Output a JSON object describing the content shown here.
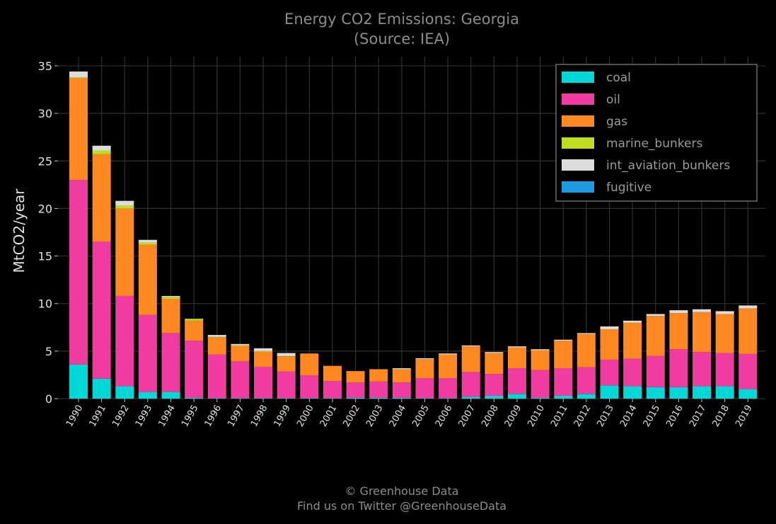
{
  "chart_data": {
    "type": "bar",
    "stacked": true,
    "title": "Energy CO2 Emissions: Georgia",
    "subtitle": "(Source: IEA)",
    "xlabel": "",
    "ylabel": "MtCO2/year",
    "ylim": [
      0,
      36
    ],
    "yticks": [
      0,
      5,
      10,
      15,
      20,
      25,
      30,
      35
    ],
    "grid": true,
    "legend_position": "top-right",
    "categories": [
      "1990",
      "1991",
      "1992",
      "1993",
      "1994",
      "1995",
      "1996",
      "1997",
      "1998",
      "1999",
      "2000",
      "2001",
      "2002",
      "2003",
      "2004",
      "2005",
      "2006",
      "2007",
      "2008",
      "2009",
      "2010",
      "2011",
      "2012",
      "2013",
      "2014",
      "2015",
      "2016",
      "2017",
      "2018",
      "2019"
    ],
    "series": [
      {
        "name": "coal",
        "color": "#00d7d7",
        "values": [
          3.6,
          2.1,
          1.3,
          0.7,
          0.7,
          0.1,
          0.05,
          0.05,
          0.05,
          0.05,
          0.05,
          0.05,
          0.1,
          0.1,
          0.1,
          0.05,
          0.05,
          0.2,
          0.3,
          0.5,
          0.1,
          0.3,
          0.5,
          1.4,
          1.3,
          1.2,
          1.2,
          1.3,
          1.3,
          1.0
        ]
      },
      {
        "name": "oil",
        "color": "#f03ca0",
        "values": [
          19.4,
          14.4,
          9.5,
          8.1,
          6.2,
          6.0,
          4.6,
          3.9,
          3.3,
          2.8,
          2.4,
          1.8,
          1.6,
          1.7,
          1.6,
          2.1,
          2.1,
          2.6,
          2.3,
          2.7,
          2.9,
          2.9,
          2.8,
          2.7,
          2.9,
          3.3,
          4.0,
          3.6,
          3.5,
          3.7
        ]
      },
      {
        "name": "gas",
        "color": "#ff8820",
        "values": [
          10.7,
          9.2,
          9.2,
          7.4,
          3.6,
          2.1,
          1.8,
          1.6,
          1.6,
          1.6,
          2.3,
          1.6,
          1.2,
          1.3,
          1.4,
          2.0,
          2.5,
          2.7,
          2.2,
          2.2,
          2.1,
          2.9,
          3.5,
          3.2,
          3.8,
          4.2,
          3.8,
          4.2,
          4.1,
          4.8
        ]
      },
      {
        "name": "marine_bunkers",
        "color": "#c0dd20",
        "values": [
          0.1,
          0.4,
          0.3,
          0.2,
          0.2,
          0.2,
          0.05,
          0.05,
          0.05,
          0.05,
          0.0,
          0.0,
          0.0,
          0.0,
          0.0,
          0.0,
          0.0,
          0.0,
          0.0,
          0.0,
          0.0,
          0.0,
          0.0,
          0.0,
          0.0,
          0.0,
          0.0,
          0.0,
          0.0,
          0.0
        ]
      },
      {
        "name": "int_aviation_bunkers",
        "color": "#dcdcdc",
        "values": [
          0.6,
          0.5,
          0.5,
          0.3,
          0.1,
          0.0,
          0.2,
          0.15,
          0.3,
          0.3,
          0.0,
          0.0,
          0.0,
          0.0,
          0.1,
          0.1,
          0.1,
          0.1,
          0.1,
          0.1,
          0.1,
          0.1,
          0.1,
          0.3,
          0.2,
          0.2,
          0.3,
          0.3,
          0.3,
          0.3
        ]
      },
      {
        "name": "fugitive",
        "color": "#1e9be0",
        "values": [
          0,
          0,
          0,
          0,
          0,
          0,
          0,
          0,
          0,
          0,
          0,
          0,
          0,
          0,
          0,
          0,
          0,
          0,
          0,
          0,
          0,
          0,
          0,
          0,
          0,
          0,
          0,
          0,
          0,
          0
        ]
      }
    ]
  },
  "footer": {
    "line1": "© Greenhouse Data",
    "line2": "Find us on Twitter @GreenhouseData"
  }
}
